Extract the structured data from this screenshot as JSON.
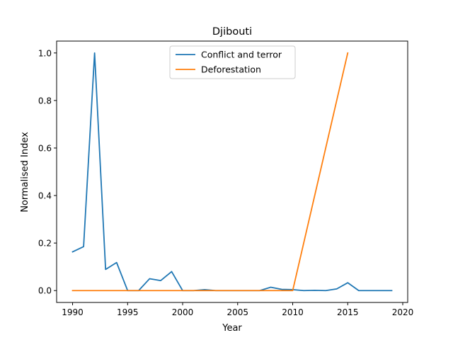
{
  "chart_data": {
    "type": "line",
    "title": "Djibouti",
    "xlabel": "Year",
    "ylabel": "Normalised Index",
    "xlim": [
      1988.55,
      2020.45
    ],
    "ylim": [
      -0.05,
      1.05
    ],
    "xticks": [
      1990,
      1995,
      2000,
      2005,
      2010,
      2015,
      2020
    ],
    "yticks": [
      0.0,
      0.2,
      0.4,
      0.6,
      0.8,
      1.0
    ],
    "ytick_labels": [
      "0.0",
      "0.2",
      "0.4",
      "0.6",
      "0.8",
      "1.0"
    ],
    "grid": false,
    "legend_position": "upper center",
    "series": [
      {
        "name": "Conflict and terror",
        "color": "#1f77b4",
        "x": [
          1990,
          1991,
          1992,
          1993,
          1994,
          1995,
          1996,
          1997,
          1998,
          1999,
          2000,
          2001,
          2002,
          2003,
          2004,
          2005,
          2006,
          2007,
          2008,
          2009,
          2010,
          2011,
          2012,
          2013,
          2014,
          2015,
          2016,
          2017,
          2018,
          2019
        ],
        "y": [
          0.163,
          0.185,
          1.0,
          0.089,
          0.118,
          0.0,
          0.0,
          0.05,
          0.042,
          0.08,
          0.0,
          0.0,
          0.004,
          0.0,
          0.0,
          0.0,
          0.0,
          0.0,
          0.014,
          0.005,
          0.004,
          0.0,
          0.001,
          0.0,
          0.007,
          0.033,
          0.0,
          0.0,
          0.0,
          0.0
        ]
      },
      {
        "name": "Deforestation",
        "color": "#ff7f0e",
        "x": [
          1990,
          1991,
          1992,
          1993,
          1994,
          1995,
          1996,
          1997,
          1998,
          1999,
          2000,
          2001,
          2002,
          2003,
          2004,
          2005,
          2006,
          2007,
          2008,
          2009,
          2010,
          2015
        ],
        "y": [
          0,
          0,
          0,
          0,
          0,
          0,
          0,
          0,
          0,
          0,
          0,
          0,
          0,
          0,
          0,
          0,
          0,
          0,
          0,
          0,
          0,
          1.0
        ]
      }
    ]
  }
}
